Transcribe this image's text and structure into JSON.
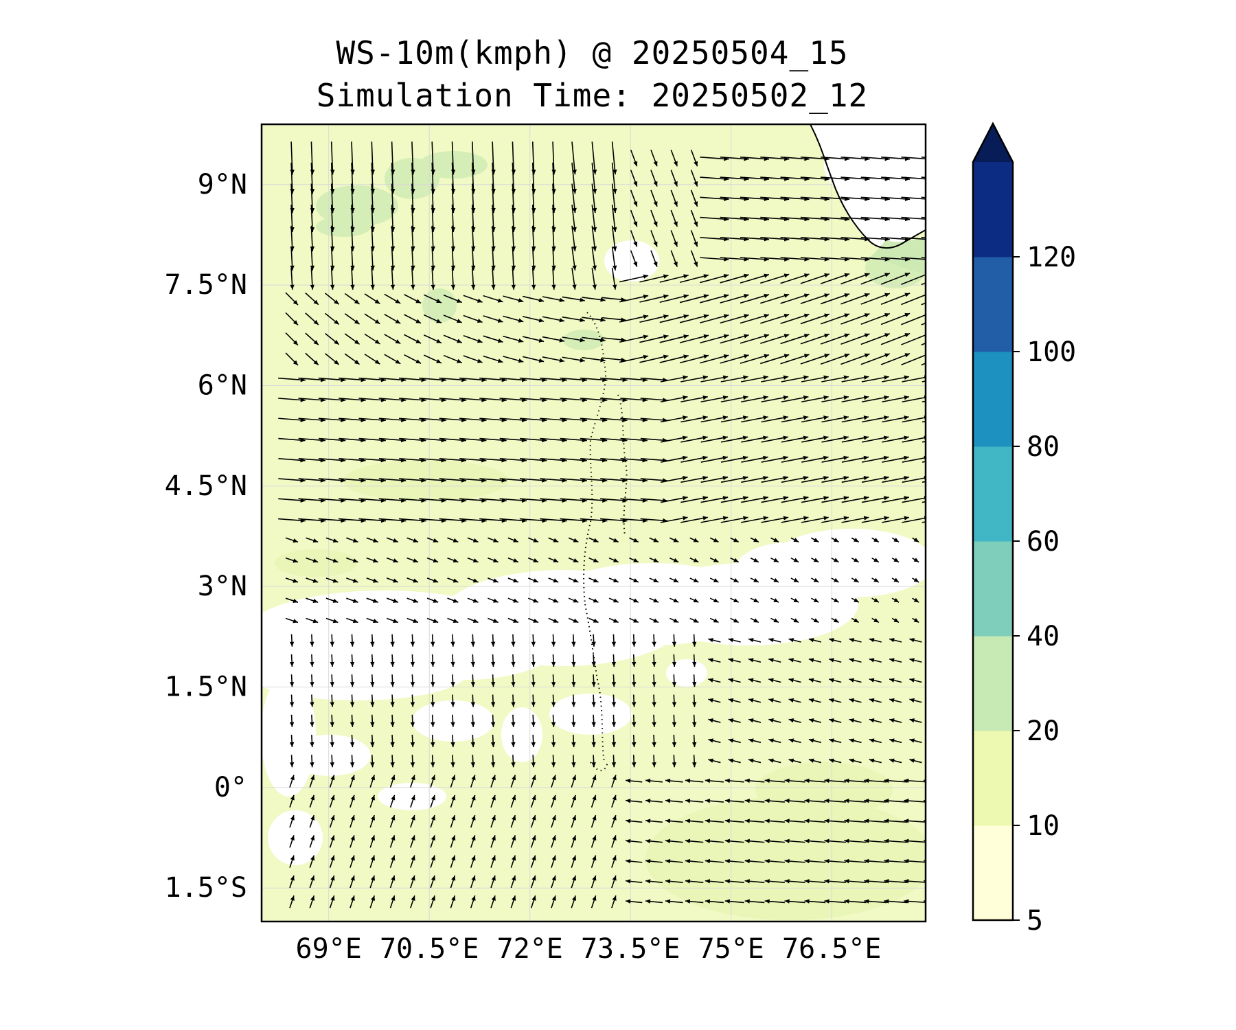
{
  "title": "WS-10m(kmph) @ 20250504_15",
  "subtitle": "Simulation Time: 20250502_12",
  "map": {
    "variable": "10 m wind speed (kmph) with wind vectors",
    "extent": {
      "lon_min": 68.0,
      "lon_max": 77.9,
      "lat_min": -2.0,
      "lat_max": 9.9
    },
    "lon_ticks": [
      {
        "value": 69.0,
        "label": "69°E"
      },
      {
        "value": 70.5,
        "label": "70.5°E"
      },
      {
        "value": 72.0,
        "label": "72°E"
      },
      {
        "value": 73.5,
        "label": "73.5°E"
      },
      {
        "value": 75.0,
        "label": "75°E"
      },
      {
        "value": 76.5,
        "label": "76.5°E"
      }
    ],
    "lat_ticks": [
      {
        "value": 9.0,
        "label": "9°N"
      },
      {
        "value": 7.5,
        "label": "7.5°N"
      },
      {
        "value": 6.0,
        "label": "6°N"
      },
      {
        "value": 4.5,
        "label": "4.5°N"
      },
      {
        "value": 3.0,
        "label": "3°N"
      },
      {
        "value": 1.5,
        "label": "1.5°N"
      },
      {
        "value": 0.0,
        "label": "0°"
      },
      {
        "value": -1.5,
        "label": "1.5°S"
      }
    ],
    "gridlines": true,
    "features": [
      "India southern tip coastline (top-right)",
      "Lakshadweep / Maldives islands (dotted, center)"
    ]
  },
  "colorbar": {
    "levels": [
      5,
      10,
      20,
      40,
      60,
      80,
      100,
      120
    ],
    "tick_labels": [
      "5",
      "10",
      "20",
      "40",
      "60",
      "80",
      "100",
      "120"
    ],
    "colors": [
      "#ffffd9",
      "#edf8b1",
      "#c7e9b4",
      "#7fcdbb",
      "#41b6c4",
      "#1d91c0",
      "#225ea8",
      "#0c2c84"
    ],
    "extend": "max",
    "extend_color": "#081d58"
  },
  "colors": {
    "background": "#ffffff",
    "frame": "#000000",
    "vector": "#000000",
    "grid": "#d9d9d9",
    "low_wind": "#ffffff",
    "light_fill": "#f1f9c4",
    "mid_fill": "#d5edb6"
  }
}
